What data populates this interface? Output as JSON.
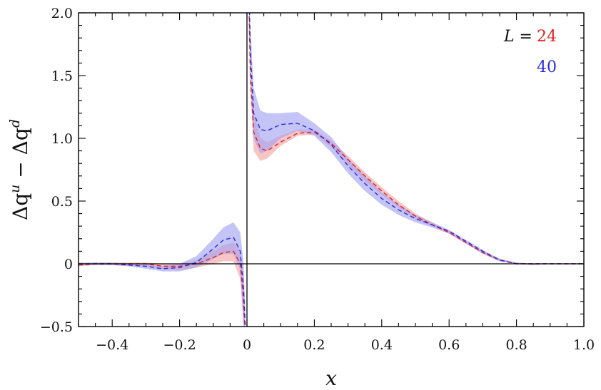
{
  "chart_data": {
    "type": "area",
    "xlabel": "x",
    "ylabel": "Δq^u − Δq^d",
    "ylabel_parts": {
      "base1": "Δq",
      "sup1": "u",
      "minus": " − ",
      "base2": "Δq",
      "sup2": "d"
    },
    "xlim": [
      -0.5,
      1.0
    ],
    "ylim": [
      -0.5,
      2.0
    ],
    "x_ticks": [
      -0.4,
      -0.2,
      0,
      0.2,
      0.4,
      0.6,
      0.8,
      1.0
    ],
    "x_tick_labels": [
      "−0.4",
      "−0.2",
      "0",
      "0.2",
      "0.4",
      "0.6",
      "0.8",
      "1.0"
    ],
    "y_ticks": [
      -0.5,
      0,
      0.5,
      1.0,
      1.5,
      2.0
    ],
    "y_tick_labels": [
      "−0.5",
      "0",
      "0.5",
      "1.0",
      "1.5",
      "2.0"
    ],
    "grid": false,
    "reference_lines": {
      "horizontal_at_y": 0,
      "vertical_at_x": 0
    },
    "legend": {
      "placement": "top-right",
      "prefix": "L = ",
      "entries": [
        "24",
        "40"
      ]
    },
    "series": [
      {
        "name": "24",
        "color": "#e02020",
        "band_color": "#f5a0a0",
        "x": [
          -0.5,
          -0.45,
          -0.4,
          -0.35,
          -0.3,
          -0.25,
          -0.2,
          -0.15,
          -0.1,
          -0.07,
          -0.04,
          -0.02,
          -0.01,
          -0.005,
          0.005,
          0.01,
          0.02,
          0.04,
          0.06,
          0.1,
          0.15,
          0.2,
          0.25,
          0.3,
          0.35,
          0.4,
          0.45,
          0.5,
          0.55,
          0.6,
          0.65,
          0.7,
          0.75,
          0.8,
          0.85,
          0.9,
          0.95,
          1.0
        ],
        "center": [
          -0.01,
          0.0,
          0.0,
          0.0,
          0.0,
          -0.02,
          -0.02,
          0.0,
          0.05,
          0.09,
          0.1,
          0.0,
          -0.3,
          -0.6,
          2.2,
          1.5,
          1.05,
          0.92,
          0.9,
          0.97,
          1.04,
          1.05,
          0.96,
          0.83,
          0.7,
          0.58,
          0.47,
          0.38,
          0.31,
          0.25,
          0.17,
          0.09,
          0.03,
          0.0,
          0.0,
          0.0,
          0.0,
          0.0
        ],
        "lower": [
          -0.02,
          -0.01,
          -0.01,
          -0.02,
          -0.02,
          -0.04,
          -0.05,
          -0.03,
          0.0,
          0.02,
          0.02,
          -0.12,
          -0.5,
          -0.6,
          2.1,
          1.4,
          0.9,
          0.82,
          0.84,
          0.94,
          1.02,
          1.03,
          0.93,
          0.79,
          0.66,
          0.55,
          0.45,
          0.36,
          0.3,
          0.24,
          0.16,
          0.08,
          0.02,
          0.0,
          -0.01,
          0.0,
          0.0,
          0.0
        ],
        "upper": [
          0.0,
          0.01,
          0.01,
          0.01,
          0.01,
          0.0,
          0.0,
          0.03,
          0.1,
          0.15,
          0.17,
          0.1,
          -0.1,
          -0.55,
          2.3,
          1.6,
          1.2,
          1.0,
          0.97,
          1.02,
          1.07,
          1.07,
          0.98,
          0.86,
          0.73,
          0.61,
          0.5,
          0.4,
          0.33,
          0.26,
          0.18,
          0.1,
          0.04,
          0.01,
          0.0,
          0.0,
          0.0,
          0.0
        ]
      },
      {
        "name": "40",
        "color": "#2a2ae0",
        "band_color": "#9f9ff2",
        "x": [
          -0.5,
          -0.45,
          -0.4,
          -0.35,
          -0.3,
          -0.25,
          -0.2,
          -0.15,
          -0.1,
          -0.07,
          -0.04,
          -0.02,
          -0.01,
          -0.005,
          0.005,
          0.01,
          0.02,
          0.04,
          0.06,
          0.1,
          0.15,
          0.2,
          0.25,
          0.3,
          0.35,
          0.4,
          0.45,
          0.5,
          0.55,
          0.6,
          0.65,
          0.7,
          0.75,
          0.8,
          0.85,
          0.9,
          0.95,
          1.0
        ],
        "center": [
          0.0,
          0.0,
          0.0,
          -0.01,
          -0.02,
          -0.04,
          -0.03,
          0.01,
          0.12,
          0.19,
          0.21,
          0.1,
          -0.2,
          -0.5,
          2.3,
          1.7,
          1.2,
          1.07,
          1.06,
          1.11,
          1.12,
          1.06,
          0.95,
          0.78,
          0.64,
          0.52,
          0.43,
          0.36,
          0.31,
          0.26,
          0.18,
          0.1,
          0.03,
          0.0,
          0.0,
          0.0,
          0.0,
          0.0
        ],
        "lower": [
          -0.01,
          -0.01,
          -0.01,
          -0.02,
          -0.04,
          -0.06,
          -0.06,
          -0.03,
          0.04,
          0.08,
          0.08,
          -0.05,
          -0.5,
          -0.6,
          2.2,
          1.5,
          1.0,
          0.88,
          0.9,
          1.0,
          1.06,
          1.02,
          0.89,
          0.72,
          0.58,
          0.47,
          0.39,
          0.33,
          0.29,
          0.24,
          0.16,
          0.08,
          0.02,
          0.0,
          -0.01,
          0.0,
          0.0,
          0.0
        ],
        "upper": [
          0.01,
          0.01,
          0.01,
          0.0,
          0.0,
          -0.02,
          0.0,
          0.06,
          0.2,
          0.29,
          0.33,
          0.25,
          0.0,
          -0.4,
          2.4,
          1.9,
          1.4,
          1.22,
          1.2,
          1.2,
          1.21,
          1.12,
          1.01,
          0.84,
          0.7,
          0.57,
          0.47,
          0.39,
          0.33,
          0.27,
          0.19,
          0.11,
          0.04,
          0.01,
          0.0,
          0.0,
          0.0,
          0.0
        ]
      }
    ]
  }
}
